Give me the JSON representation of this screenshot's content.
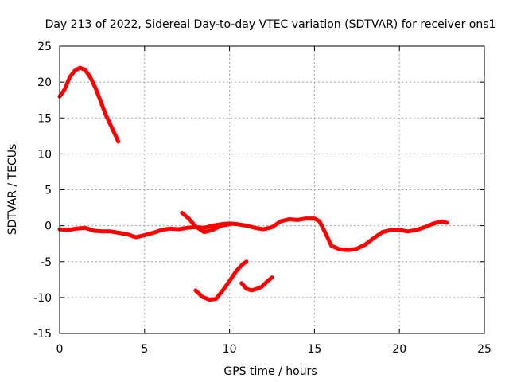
{
  "chart_data": {
    "type": "line",
    "title": "Day 213 of 2022, Sidereal Day-to-day VTEC variation (SDTVAR) for receiver ons1",
    "xlabel": "GPS time / hours",
    "ylabel": "SDTVAR / TECUs",
    "xlim": [
      0,
      25
    ],
    "ylim": [
      -15,
      25
    ],
    "xticks": [
      0,
      5,
      10,
      15,
      20,
      25
    ],
    "yticks": [
      -15,
      -10,
      -5,
      0,
      5,
      10,
      15,
      20,
      25
    ],
    "xtick_labels": [
      "0",
      "5",
      "10",
      "15",
      "20",
      "25"
    ],
    "ytick_labels": [
      "-15",
      "-10",
      "-5",
      "0",
      "5",
      "10",
      "15",
      "20",
      "25"
    ],
    "grid": true,
    "color": "#ff0000",
    "series": [
      {
        "name": "segment-1",
        "x": [
          0.0,
          0.3,
          0.6,
          0.9,
          1.2,
          1.5,
          1.8,
          2.1,
          2.4,
          2.7,
          3.0,
          3.3,
          3.45
        ],
        "y": [
          18.0,
          19.0,
          20.7,
          21.6,
          22.0,
          21.7,
          20.7,
          19.2,
          17.4,
          15.5,
          14.0,
          12.5,
          11.7
        ]
      },
      {
        "name": "segment-2",
        "x": [
          0.0,
          0.5,
          1.0,
          1.5,
          2.0,
          2.5,
          3.0,
          3.5,
          4.0,
          4.5,
          5.0,
          5.5,
          6.0,
          6.5,
          7.0,
          7.5,
          8.0,
          8.5,
          9.0,
          9.5,
          10.0,
          10.5,
          11.0,
          11.5,
          12.0,
          12.5,
          13.0,
          13.5,
          14.0,
          14.5,
          15.0,
          15.3,
          15.6,
          16.0,
          16.5,
          17.0,
          17.5,
          18.0,
          18.5,
          19.0,
          19.5,
          20.0,
          20.5,
          21.0,
          21.5,
          22.0,
          22.5,
          22.8
        ],
        "y": [
          -0.5,
          -0.6,
          -0.4,
          -0.3,
          -0.7,
          -0.8,
          -0.8,
          -1.0,
          -1.2,
          -1.6,
          -1.3,
          -1.0,
          -0.6,
          -0.4,
          -0.5,
          -0.3,
          -0.2,
          -0.3,
          0.0,
          0.2,
          0.3,
          0.2,
          0.0,
          -0.3,
          -0.5,
          -0.2,
          0.6,
          0.9,
          0.8,
          1.0,
          1.0,
          0.6,
          -0.8,
          -2.8,
          -3.3,
          -3.4,
          -3.2,
          -2.6,
          -1.7,
          -0.9,
          -0.6,
          -0.6,
          -0.8,
          -0.6,
          -0.2,
          0.3,
          0.6,
          0.4
        ]
      },
      {
        "name": "segment-3",
        "x": [
          7.2,
          7.6,
          8.0,
          8.5,
          9.0,
          9.5,
          10.0
        ],
        "y": [
          1.8,
          1.0,
          -0.1,
          -0.9,
          -0.6,
          0.0,
          0.2
        ]
      },
      {
        "name": "segment-4",
        "x": [
          8.0,
          8.4,
          8.8,
          9.2,
          9.6,
          10.0,
          10.4,
          10.8,
          11.0
        ],
        "y": [
          -9.0,
          -9.9,
          -10.3,
          -10.2,
          -9.0,
          -7.7,
          -6.3,
          -5.3,
          -5.0
        ]
      },
      {
        "name": "segment-5",
        "x": [
          10.7,
          11.0,
          11.3,
          11.6,
          11.9,
          12.2,
          12.5
        ],
        "y": [
          -8.0,
          -8.8,
          -9.0,
          -8.8,
          -8.5,
          -7.8,
          -7.2
        ]
      }
    ]
  }
}
